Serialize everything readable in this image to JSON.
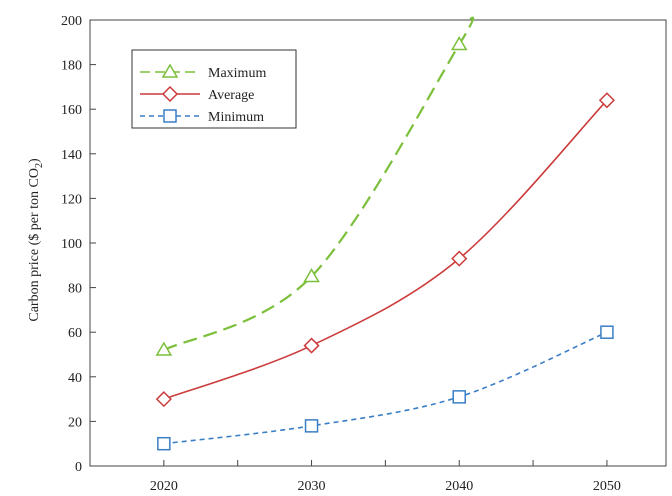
{
  "chart_data": {
    "type": "line",
    "title": "",
    "xlabel": "",
    "ylabel": "Carbon price ($ per ton CO",
    "ylabel_subscript": "2",
    "ylabel_suffix": ")",
    "x": [
      2020,
      2030,
      2040,
      2050
    ],
    "xlim": [
      2015,
      2054
    ],
    "ylim": [
      0,
      200
    ],
    "yticks": [
      0,
      20,
      40,
      60,
      80,
      100,
      120,
      140,
      160,
      180,
      200
    ],
    "xticks": [
      2020,
      2030,
      2040,
      2050
    ],
    "grid": false,
    "legend": "top-left",
    "series": [
      {
        "name": "Maximum",
        "values": [
          52,
          85,
          189,
          null
        ],
        "curve_extends_to": [
          2040.6,
          200
        ],
        "color": "#7bbf3a",
        "marker": "triangle",
        "dash": "long"
      },
      {
        "name": "Average",
        "values": [
          30,
          54,
          93,
          164
        ],
        "color": "#cc3b3b",
        "marker": "diamond",
        "dash": "solid"
      },
      {
        "name": "Minimum",
        "values": [
          10,
          18,
          31,
          60
        ],
        "color": "#3a7fc6",
        "marker": "square",
        "dash": "short"
      }
    ]
  }
}
